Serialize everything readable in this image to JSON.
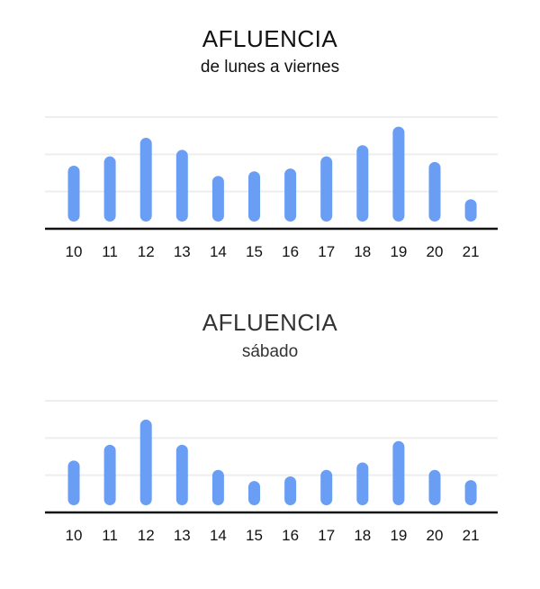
{
  "chart_data": [
    {
      "type": "bar",
      "title": "AFLUENCIA",
      "subtitle": "de lunes a viernes",
      "categories": [
        "10",
        "11",
        "12",
        "13",
        "14",
        "15",
        "16",
        "17",
        "18",
        "19",
        "20",
        "21"
      ],
      "values": [
        60,
        70,
        90,
        77,
        49,
        54,
        57,
        70,
        82,
        102,
        64,
        24
      ],
      "ylim": [
        0,
        120
      ],
      "grid": true,
      "color": "#6a9ef5"
    },
    {
      "type": "bar",
      "title": "AFLUENCIA",
      "subtitle": "sábado",
      "categories": [
        "10",
        "11",
        "12",
        "13",
        "14",
        "15",
        "16",
        "17",
        "18",
        "19",
        "20",
        "21"
      ],
      "values": [
        48,
        65,
        92,
        65,
        38,
        26,
        31,
        38,
        46,
        69,
        38,
        27
      ],
      "ylim": [
        0,
        120
      ],
      "grid": true,
      "color": "#6a9ef5"
    }
  ]
}
